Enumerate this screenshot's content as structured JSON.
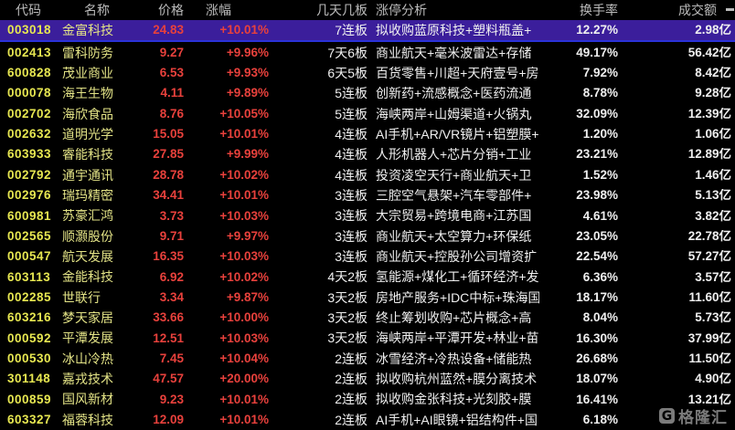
{
  "table": {
    "columns": [
      {
        "key": "code",
        "label": "代码"
      },
      {
        "key": "name",
        "label": "名称"
      },
      {
        "key": "price",
        "label": "价格"
      },
      {
        "key": "change",
        "label": "涨幅"
      },
      {
        "key": "boards",
        "label": "几天几板"
      },
      {
        "key": "analysis",
        "label": "涨停分析"
      },
      {
        "key": "rate",
        "label": "换手率"
      },
      {
        "key": "turnover",
        "label": "成交额"
      }
    ],
    "rows": [
      {
        "code": "003018",
        "name": "金富科技",
        "price": "24.83",
        "change": "+10.01%",
        "boards": "7连板",
        "analysis": "拟收购蓝原科技+塑料瓶盖+",
        "rate": "12.27%",
        "turnover": "2.98亿",
        "selected": true
      },
      {
        "code": "002413",
        "name": "雷科防务",
        "price": "9.27",
        "change": "+9.96%",
        "boards": "7天6板",
        "analysis": "商业航天+毫米波雷达+存储",
        "rate": "49.17%",
        "turnover": "56.42亿",
        "selected": false
      },
      {
        "code": "600828",
        "name": "茂业商业",
        "price": "6.53",
        "change": "+9.93%",
        "boards": "6天5板",
        "analysis": "百货零售+川超+天府壹号+房",
        "rate": "7.92%",
        "turnover": "8.42亿",
        "selected": false
      },
      {
        "code": "000078",
        "name": "海王生物",
        "price": "4.11",
        "change": "+9.89%",
        "boards": "5连板",
        "analysis": "创新药+流感概念+医药流通",
        "rate": "8.78%",
        "turnover": "9.28亿",
        "selected": false
      },
      {
        "code": "002702",
        "name": "海欣食品",
        "price": "8.76",
        "change": "+10.05%",
        "boards": "5连板",
        "analysis": "海峡两岸+山姆渠道+火锅丸",
        "rate": "32.09%",
        "turnover": "12.39亿",
        "selected": false
      },
      {
        "code": "002632",
        "name": "道明光学",
        "price": "15.05",
        "change": "+10.01%",
        "boards": "4连板",
        "analysis": "AI手机+AR/VR镜片+铝塑膜+",
        "rate": "1.20%",
        "turnover": "1.06亿",
        "selected": false
      },
      {
        "code": "603933",
        "name": "睿能科技",
        "price": "27.85",
        "change": "+9.99%",
        "boards": "4连板",
        "analysis": "人形机器人+芯片分销+工业",
        "rate": "23.21%",
        "turnover": "12.89亿",
        "selected": false
      },
      {
        "code": "002792",
        "name": "通宇通讯",
        "price": "28.78",
        "change": "+10.02%",
        "boards": "4连板",
        "analysis": "投资凌空天行+商业航天+卫",
        "rate": "1.52%",
        "turnover": "1.46亿",
        "selected": false
      },
      {
        "code": "002976",
        "name": "瑞玛精密",
        "price": "34.41",
        "change": "+10.01%",
        "boards": "3连板",
        "analysis": "三腔空气悬架+汽车零部件+",
        "rate": "23.98%",
        "turnover": "5.13亿",
        "selected": false
      },
      {
        "code": "600981",
        "name": "苏豪汇鸿",
        "price": "3.73",
        "change": "+10.03%",
        "boards": "3连板",
        "analysis": "大宗贸易+跨境电商+江苏国",
        "rate": "4.61%",
        "turnover": "3.82亿",
        "selected": false
      },
      {
        "code": "002565",
        "name": "顺灏股份",
        "price": "9.71",
        "change": "+9.97%",
        "boards": "3连板",
        "analysis": "商业航天+太空算力+环保纸",
        "rate": "23.05%",
        "turnover": "22.78亿",
        "selected": false
      },
      {
        "code": "000547",
        "name": "航天发展",
        "price": "16.35",
        "change": "+10.03%",
        "boards": "3连板",
        "analysis": "商业航天+控股孙公司增资扩",
        "rate": "22.54%",
        "turnover": "57.27亿",
        "selected": false
      },
      {
        "code": "603113",
        "name": "金能科技",
        "price": "6.92",
        "change": "+10.02%",
        "boards": "4天2板",
        "analysis": "氢能源+煤化工+循环经济+发",
        "rate": "6.36%",
        "turnover": "3.57亿",
        "selected": false
      },
      {
        "code": "002285",
        "name": "世联行",
        "price": "3.34",
        "change": "+9.87%",
        "boards": "3天2板",
        "analysis": "房地产服务+IDC中标+珠海国",
        "rate": "18.17%",
        "turnover": "11.60亿",
        "selected": false
      },
      {
        "code": "603216",
        "name": "梦天家居",
        "price": "33.66",
        "change": "+10.00%",
        "boards": "3天2板",
        "analysis": "终止筹划收购+芯片概念+高",
        "rate": "8.04%",
        "turnover": "5.73亿",
        "selected": false
      },
      {
        "code": "000592",
        "name": "平潭发展",
        "price": "12.51",
        "change": "+10.03%",
        "boards": "3天2板",
        "analysis": "海峡两岸+平潭开发+林业+苗",
        "rate": "16.30%",
        "turnover": "37.99亿",
        "selected": false
      },
      {
        "code": "000530",
        "name": "冰山冷热",
        "price": "7.45",
        "change": "+10.04%",
        "boards": "2连板",
        "analysis": "冰雪经济+冷热设备+储能热",
        "rate": "26.68%",
        "turnover": "11.50亿",
        "selected": false
      },
      {
        "code": "301148",
        "name": "嘉戎技术",
        "price": "47.57",
        "change": "+20.00%",
        "boards": "2连板",
        "analysis": "拟收购杭州蓝然+膜分离技术",
        "rate": "18.07%",
        "turnover": "4.90亿",
        "selected": false
      },
      {
        "code": "000859",
        "name": "国风新材",
        "price": "9.23",
        "change": "+10.01%",
        "boards": "2连板",
        "analysis": "拟收购金张科技+光刻胶+膜",
        "rate": "16.41%",
        "turnover": "13.21亿",
        "selected": false
      },
      {
        "code": "603327",
        "name": "福蓉科技",
        "price": "12.09",
        "change": "+10.01%",
        "boards": "2连板",
        "analysis": "AI手机+AI眼镜+铝结构件+国",
        "rate": "6.18%",
        "turnover": "",
        "selected": false
      }
    ]
  },
  "watermark": {
    "logo": "G",
    "text": "格隆汇"
  },
  "colors": {
    "background": "#000000",
    "header_text": "#bbbbbb",
    "code_yellow": "#e7e751",
    "name_yellow": "#e3e386",
    "up_red": "#e8413c",
    "value_white": "#f0f0f0",
    "selected_row_bg": "#3b1e9b",
    "selected_row_border": "#2a32d8",
    "watermark_gray": "#9a9a9a"
  }
}
